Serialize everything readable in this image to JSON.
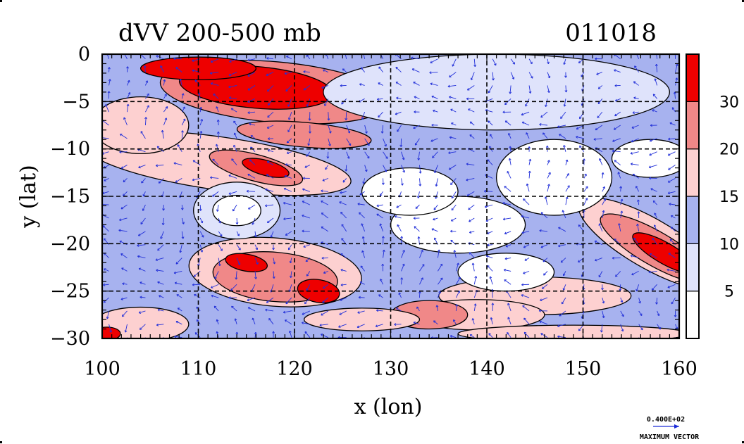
{
  "chart_data": {
    "type": "heatmap",
    "title": "dVV 200-500 mb",
    "date_label": "011018",
    "xlabel": "x (lon)",
    "ylabel": "y (lat)",
    "xlim": [
      100,
      160
    ],
    "ylim": [
      -30,
      0
    ],
    "x_ticks": [
      100,
      110,
      120,
      130,
      140,
      150,
      160
    ],
    "x_tick_labels": [
      "100",
      "110",
      "120",
      "130",
      "140",
      "150",
      "160"
    ],
    "y_ticks": [
      0,
      -5,
      -10,
      -15,
      -20,
      -25,
      -30
    ],
    "y_tick_labels": [
      "0",
      "−5",
      "−10",
      "−15",
      "−20",
      "−25",
      "−30"
    ],
    "grid": true,
    "colorbar": {
      "levels": [
        0,
        5,
        10,
        15,
        20,
        30,
        35
      ],
      "tick_labels": [
        "5",
        "10",
        "15",
        "20",
        "30"
      ],
      "colors": [
        "#ffffff",
        "#dfe3fb",
        "#a7b2ef",
        "#fdd0d0",
        "#f08888",
        "#ee0000"
      ]
    },
    "regions": [
      {
        "lon": 118,
        "lat": -4,
        "rx": 12,
        "ry": 3.2,
        "rot": 5,
        "level": 4
      },
      {
        "lon": 116,
        "lat": -3.5,
        "rx": 8,
        "ry": 2.2,
        "rot": 5,
        "level": 5
      },
      {
        "lon": 110,
        "lat": -1.5,
        "rx": 6,
        "ry": 1.2,
        "rot": 0,
        "level": 5
      },
      {
        "lon": 121,
        "lat": -8.5,
        "rx": 7,
        "ry": 1.3,
        "rot": 5,
        "level": 4
      },
      {
        "lon": 112,
        "lat": -11.5,
        "rx": 14,
        "ry": 2.8,
        "rot": 8,
        "level": 3
      },
      {
        "lon": 116,
        "lat": -12,
        "rx": 5,
        "ry": 1.4,
        "rot": 15,
        "level": 4
      },
      {
        "lon": 117,
        "lat": -12,
        "rx": 2.5,
        "ry": 0.8,
        "rot": 15,
        "level": 5
      },
      {
        "lon": 104,
        "lat": -7.5,
        "rx": 5,
        "ry": 3,
        "rot": 0,
        "level": 3
      },
      {
        "lon": 118,
        "lat": -23,
        "rx": 9,
        "ry": 3.6,
        "rot": 5,
        "level": 3
      },
      {
        "lon": 118,
        "lat": -23.5,
        "rx": 6.5,
        "ry": 2.6,
        "rot": 5,
        "level": 4
      },
      {
        "lon": 122.5,
        "lat": -25,
        "rx": 2.2,
        "ry": 1.2,
        "rot": 10,
        "level": 5
      },
      {
        "lon": 115,
        "lat": -22,
        "rx": 2.2,
        "ry": 0.9,
        "rot": 10,
        "level": 5
      },
      {
        "lon": 114,
        "lat": -16.5,
        "rx": 4.5,
        "ry": 3,
        "rot": 0,
        "level": 1
      },
      {
        "lon": 114,
        "lat": -16.5,
        "rx": 2.5,
        "ry": 1.6,
        "rot": 0,
        "level": 0
      },
      {
        "lon": 157,
        "lat": -20,
        "rx": 8.5,
        "ry": 2.6,
        "rot": 30,
        "level": 3
      },
      {
        "lon": 157.5,
        "lat": -20.5,
        "rx": 6.5,
        "ry": 1.8,
        "rot": 30,
        "level": 4
      },
      {
        "lon": 158.5,
        "lat": -21,
        "rx": 3.8,
        "ry": 1.1,
        "rot": 30,
        "level": 5
      },
      {
        "lon": 145,
        "lat": -25.5,
        "rx": 10,
        "ry": 2,
        "rot": 0,
        "level": 3
      },
      {
        "lon": 144.5,
        "lat": -23,
        "rx": 1.6,
        "ry": 1,
        "rot": 0,
        "level": 4
      },
      {
        "lon": 139,
        "lat": -27.5,
        "rx": 7,
        "ry": 1.6,
        "rot": 0,
        "level": 3
      },
      {
        "lon": 134,
        "lat": -27.5,
        "rx": 4,
        "ry": 1.5,
        "rot": 0,
        "level": 4
      },
      {
        "lon": 104,
        "lat": -28.5,
        "rx": 5,
        "ry": 1.8,
        "rot": 0,
        "level": 3
      },
      {
        "lon": 100.5,
        "lat": -29.5,
        "rx": 1.4,
        "ry": 0.7,
        "rot": 0,
        "level": 5
      },
      {
        "lon": 149,
        "lat": -29.5,
        "rx": 12,
        "ry": 0.9,
        "rot": 0,
        "level": 3
      },
      {
        "lon": 127,
        "lat": -28,
        "rx": 6,
        "ry": 1.2,
        "rot": 0,
        "level": 3
      },
      {
        "lon": 141,
        "lat": -4,
        "rx": 18,
        "ry": 4,
        "rot": 0,
        "level": 1
      },
      {
        "lon": 147,
        "lat": -13,
        "rx": 6,
        "ry": 4,
        "rot": 0,
        "level": 0
      },
      {
        "lon": 137,
        "lat": -18,
        "rx": 7,
        "ry": 3,
        "rot": 0,
        "level": 0
      },
      {
        "lon": 132,
        "lat": -14.5,
        "rx": 5,
        "ry": 2.5,
        "rot": 0,
        "level": 0
      },
      {
        "lon": 157,
        "lat": -11,
        "rx": 4,
        "ry": 2,
        "rot": 0,
        "level": 0
      },
      {
        "lon": 142,
        "lat": -23,
        "rx": 5,
        "ry": 2,
        "rot": 0,
        "level": 0
      }
    ],
    "vector": {
      "reference_value": "0.400E+02",
      "reference_label": "MAXIMUM VECTOR"
    }
  }
}
